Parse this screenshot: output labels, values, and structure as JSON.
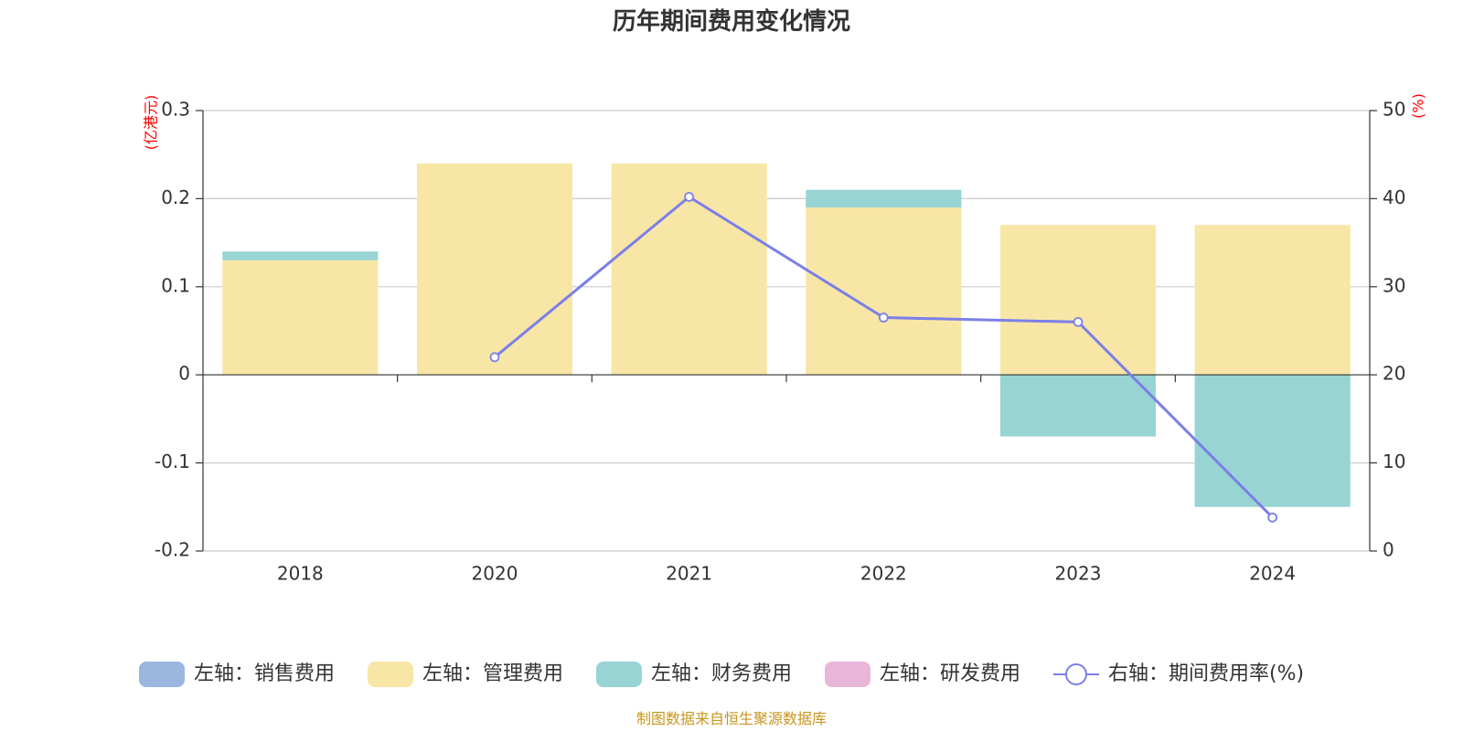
{
  "colors": {
    "sales": "#9bb7e0",
    "admin": "#f8e6a7",
    "finance": "#98d4d4",
    "rnd": "#e8b6d9",
    "rate": "#7b7fe8",
    "unit": "#ff0000",
    "source": "#c8961e"
  },
  "chart_data": {
    "type": "bar",
    "title": "历年期间费用变化情况",
    "categories": [
      "2018",
      "2020",
      "2021",
      "2022",
      "2023",
      "2024"
    ],
    "left_axis": {
      "unit": "(亿港元)",
      "ylim": [
        -0.2,
        0.3
      ],
      "ticks": [
        "0.3",
        "0.2",
        "0.1",
        "0",
        "-0.1",
        "-0.2"
      ]
    },
    "right_axis": {
      "unit": "(%)",
      "ylim": [
        0,
        50
      ],
      "ticks": [
        "50",
        "40",
        "30",
        "20",
        "10",
        "0"
      ]
    },
    "series": [
      {
        "name": "左轴：销售费用",
        "key": "sales",
        "axis": "left",
        "kind": "bar",
        "values": [
          0,
          0,
          0,
          0,
          0,
          0
        ]
      },
      {
        "name": "左轴：管理费用",
        "key": "admin",
        "axis": "left",
        "kind": "bar",
        "values": [
          0.13,
          0.24,
          0.24,
          0.19,
          0.17,
          0.17
        ]
      },
      {
        "name": "左轴：财务费用",
        "key": "finance",
        "axis": "left",
        "kind": "bar",
        "values": [
          0.01,
          0,
          0,
          0.02,
          -0.07,
          -0.15
        ]
      },
      {
        "name": "左轴：研发费用",
        "key": "rnd",
        "axis": "left",
        "kind": "bar",
        "values": [
          0,
          0,
          0,
          0,
          0,
          0
        ]
      },
      {
        "name": "右轴：期间费用率(%)",
        "key": "rate",
        "axis": "right",
        "kind": "line",
        "values": [
          null,
          22,
          40.2,
          26.5,
          26,
          3.8
        ]
      }
    ],
    "grid": true,
    "legend_position": "bottom",
    "source_note": "制图数据来自恒生聚源数据库"
  }
}
